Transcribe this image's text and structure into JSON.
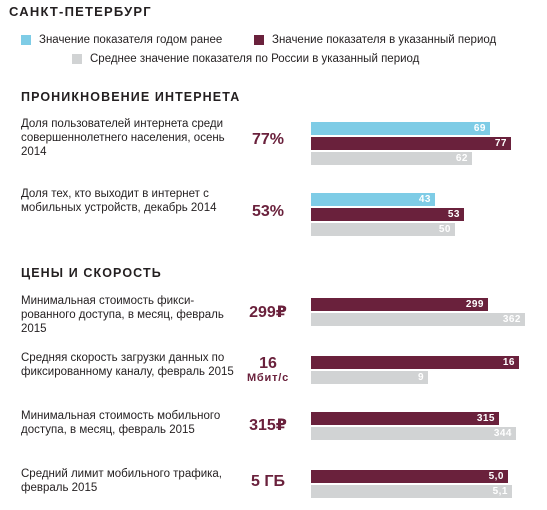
{
  "title": "САНКТ-ПЕТЕРБУРГ",
  "colors": {
    "prev": "#7ecce6",
    "cur": "#6a213c",
    "avg": "#d1d3d4"
  },
  "legend": {
    "prev": "Значение показателя годом ранее",
    "cur": "Значение показателя в указанный период",
    "avg": "Среднее значение показателя по России в указанный период"
  },
  "sections": [
    {
      "title": "ПРОНИКНОВЕНИЕ ИНТЕРНЕТА"
    },
    {
      "title": "ЦЕНЫ И СКОРОСТЬ"
    }
  ],
  "metrics": [
    {
      "label": "Доля пользователей интернета среди совершеннолетнего населения, осень 2014",
      "value": "77%",
      "unit": ""
    },
    {
      "label": "Доля тех, кто выходит в интернет с мобильных устройств, декабрь 2014",
      "value": "53%",
      "unit": ""
    },
    {
      "label": "Минимальная стоимость фикси-рованного доступа, в месяц, февраль 2015",
      "value": "299₽",
      "unit": ""
    },
    {
      "label": "Средняя скорость загрузки данных по фиксированному каналу, февраль 2015",
      "value": "16",
      "unit": "Мбит/с"
    },
    {
      "label": "Минимальная стоимость мобильного доступа, в месяц, февраль 2015",
      "value": "315₽",
      "unit": ""
    },
    {
      "label": "Средний лимит мобильного трафика, февраль 2015",
      "value": "5 ГБ",
      "unit": ""
    }
  ],
  "chart_data": {
    "type": "bar",
    "orientation": "horizontal",
    "series_keys": [
      "prev",
      "cur",
      "avg"
    ],
    "groups": [
      {
        "bars": [
          {
            "series": "prev",
            "value": 69,
            "label": "69"
          },
          {
            "series": "cur",
            "value": 77,
            "label": "77"
          },
          {
            "series": "avg",
            "value": 62,
            "label": "62"
          }
        ]
      },
      {
        "bars": [
          {
            "series": "prev",
            "value": 43,
            "label": "43"
          },
          {
            "series": "cur",
            "value": 53,
            "label": "53"
          },
          {
            "series": "avg",
            "value": 50,
            "label": "50"
          }
        ]
      },
      {
        "bars": [
          {
            "series": "cur",
            "value": 299,
            "label": "299"
          },
          {
            "series": "avg",
            "value": 362,
            "label": "362"
          }
        ]
      },
      {
        "bars": [
          {
            "series": "cur",
            "value": 16,
            "label": "16"
          },
          {
            "series": "avg",
            "value": 9,
            "label": "9"
          }
        ]
      },
      {
        "bars": [
          {
            "series": "cur",
            "value": 315,
            "label": "315"
          },
          {
            "series": "avg",
            "value": 344,
            "label": "344"
          }
        ]
      },
      {
        "bars": [
          {
            "series": "cur",
            "value": 5.0,
            "label": "5,0"
          },
          {
            "series": "avg",
            "value": 5.1,
            "label": "5,1"
          }
        ]
      }
    ]
  }
}
